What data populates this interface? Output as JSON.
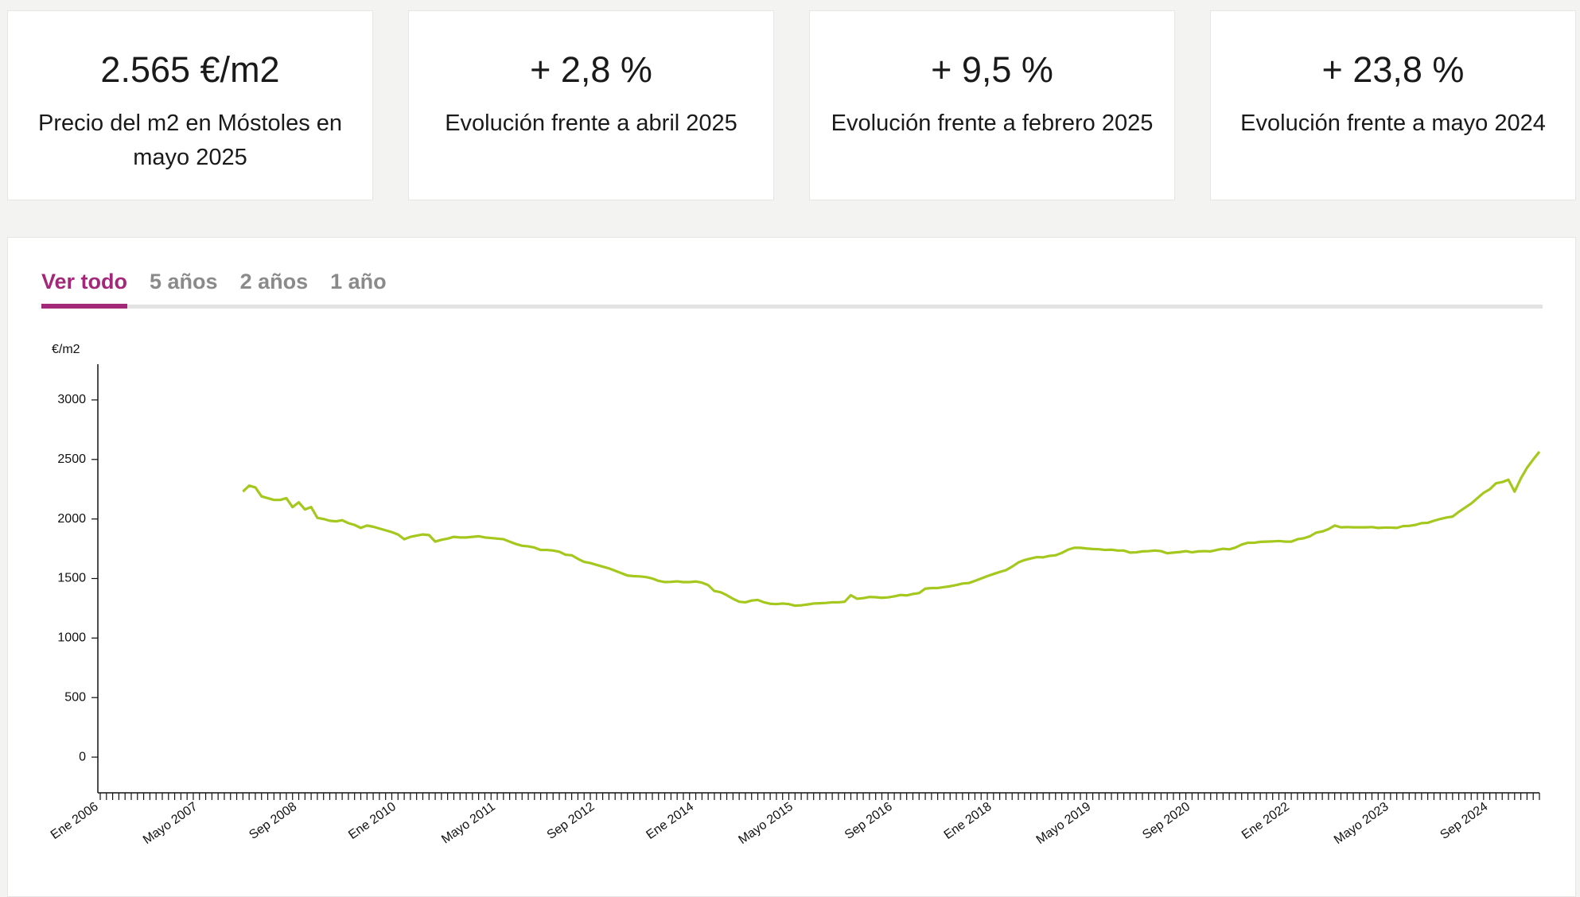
{
  "cards": [
    {
      "value": "2.565 €/m2",
      "label": "Precio del m2 en Móstoles en mayo 2025"
    },
    {
      "value": "+ 2,8 %",
      "label": "Evolución frente a abril 2025"
    },
    {
      "value": "+ 9,5 %",
      "label": "Evolución frente a febrero 2025"
    },
    {
      "value": "+ 23,8 %",
      "label": "Evolución frente a mayo 2024"
    }
  ],
  "tabs": [
    "Ver todo",
    "5 años",
    "2 años",
    "1 año"
  ],
  "chart_data": {
    "type": "line",
    "y_label": "€/m2",
    "color": "#a5c81e",
    "ylim": [
      -300,
      3300
    ],
    "yticks": [
      0,
      500,
      1000,
      1500,
      2000,
      2500,
      3000
    ],
    "categories": [
      "Ene 2006",
      null,
      null,
      null,
      null,
      null,
      null,
      null,
      null,
      null,
      null,
      null,
      null,
      null,
      null,
      null,
      "Mayo 2007",
      null,
      null,
      null,
      null,
      null,
      null,
      null,
      null,
      null,
      null,
      null,
      null,
      null,
      null,
      null,
      "Sep 2008",
      null,
      null,
      null,
      null,
      null,
      null,
      null,
      null,
      null,
      null,
      null,
      null,
      null,
      null,
      null,
      "Ene 2010",
      null,
      null,
      null,
      null,
      null,
      null,
      null,
      null,
      null,
      null,
      null,
      null,
      null,
      null,
      null,
      "Mayo 2011",
      null,
      null,
      null,
      null,
      null,
      null,
      null,
      null,
      null,
      null,
      null,
      null,
      null,
      null,
      null,
      "Sep 2012",
      null,
      null,
      null,
      null,
      null,
      null,
      null,
      null,
      null,
      null,
      null,
      null,
      null,
      null,
      null,
      "Ene 2014",
      null,
      null,
      null,
      null,
      null,
      null,
      null,
      null,
      null,
      null,
      null,
      null,
      null,
      null,
      null,
      "Mayo 2015",
      null,
      null,
      null,
      null,
      null,
      null,
      null,
      null,
      null,
      null,
      null,
      null,
      null,
      null,
      null,
      "Sep 2016",
      null,
      null,
      null,
      null,
      null,
      null,
      null,
      null,
      null,
      null,
      null,
      null,
      null,
      null,
      null,
      "Ene 2018",
      null,
      null,
      null,
      null,
      null,
      null,
      null,
      null,
      null,
      null,
      null,
      null,
      null,
      null,
      null,
      "Mayo 2019",
      null,
      null,
      null,
      null,
      null,
      null,
      null,
      null,
      null,
      null,
      null,
      null,
      null,
      null,
      null,
      "Sep 2020",
      null,
      null,
      null,
      null,
      null,
      null,
      null,
      null,
      null,
      null,
      null,
      null,
      null,
      null,
      null,
      "Ene 2022",
      null,
      null,
      null,
      null,
      null,
      null,
      null,
      null,
      null,
      null,
      null,
      null,
      null,
      null,
      null,
      "Mayo 2023",
      null,
      null,
      null,
      null,
      null,
      null,
      null,
      null,
      null,
      null,
      null,
      null,
      null,
      null,
      null,
      "Sep 2024",
      null,
      null,
      null,
      null,
      null,
      null,
      null,
      null
    ],
    "values": [
      null,
      null,
      null,
      null,
      null,
      null,
      null,
      null,
      null,
      null,
      null,
      null,
      null,
      null,
      null,
      null,
      null,
      null,
      null,
      null,
      null,
      null,
      null,
      2230,
      2280,
      2265,
      2190,
      2175,
      2160,
      2160,
      2175,
      2100,
      2140,
      2080,
      2100,
      2010,
      2000,
      1985,
      1980,
      1990,
      1965,
      1950,
      1925,
      1945,
      1935,
      1920,
      1905,
      1890,
      1870,
      1830,
      1850,
      1860,
      1870,
      1865,
      1810,
      1825,
      1835,
      1850,
      1845,
      1845,
      1850,
      1855,
      1845,
      1840,
      1835,
      1830,
      1810,
      1790,
      1775,
      1770,
      1760,
      1740,
      1740,
      1735,
      1725,
      1700,
      1695,
      1665,
      1640,
      1630,
      1615,
      1600,
      1585,
      1565,
      1545,
      1525,
      1520,
      1518,
      1512,
      1500,
      1480,
      1470,
      1472,
      1476,
      1470,
      1470,
      1475,
      1465,
      1445,
      1395,
      1385,
      1360,
      1330,
      1305,
      1300,
      1315,
      1320,
      1300,
      1288,
      1285,
      1290,
      1285,
      1272,
      1275,
      1282,
      1290,
      1292,
      1295,
      1300,
      1300,
      1305,
      1360,
      1330,
      1335,
      1345,
      1343,
      1338,
      1342,
      1350,
      1362,
      1358,
      1370,
      1378,
      1415,
      1420,
      1420,
      1428,
      1435,
      1445,
      1458,
      1462,
      1480,
      1500,
      1520,
      1538,
      1555,
      1570,
      1600,
      1635,
      1655,
      1668,
      1680,
      1678,
      1690,
      1695,
      1715,
      1742,
      1758,
      1758,
      1752,
      1748,
      1746,
      1740,
      1742,
      1735,
      1735,
      1718,
      1720,
      1728,
      1730,
      1735,
      1730,
      1712,
      1718,
      1722,
      1730,
      1720,
      1728,
      1730,
      1728,
      1740,
      1750,
      1745,
      1760,
      1785,
      1800,
      1800,
      1808,
      1810,
      1812,
      1815,
      1810,
      1810,
      1830,
      1838,
      1855,
      1885,
      1895,
      1915,
      1945,
      1930,
      1932,
      1930,
      1930,
      1930,
      1932,
      1925,
      1928,
      1928,
      1925,
      1940,
      1942,
      1950,
      1965,
      1968,
      1985,
      2000,
      2012,
      2020,
      2060,
      2095,
      2130,
      2175,
      2220,
      2250,
      2300,
      2310,
      2330,
      2230,
      2340,
      2430,
      2500,
      2565
    ]
  }
}
